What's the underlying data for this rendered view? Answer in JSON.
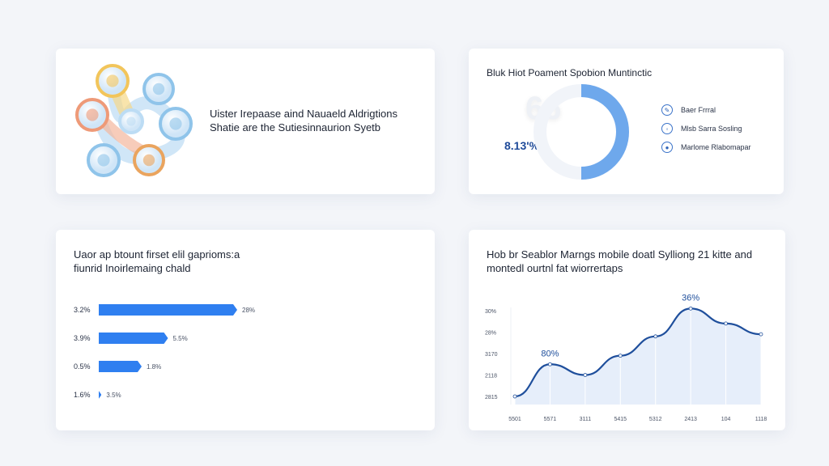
{
  "network_card": {
    "text_line1": "Uister Irepaase aind Nauaeld Aldrigtions",
    "text_line2": "Shatie are the Sutiesinnaurion Syetb",
    "node_colors": [
      "#f2c55b",
      "#8fc4ea",
      "#ee9a78",
      "#8fc4ea",
      "#8fc4ea",
      "#eaa45e",
      "#bcdcf4"
    ]
  },
  "donut_card": {
    "title": "Bluk Hiot Poament Spobion Muntinctic",
    "big_glyph": "66",
    "value_text": "8.13'%",
    "fill_fraction": 0.5,
    "accent": "#6ea8ec",
    "legend": [
      {
        "icon": "edit-icon",
        "glyph": "✎",
        "label": "Baer Frrral"
      },
      {
        "icon": "info-icon",
        "glyph": "◦",
        "label": "Mlsb Sarra Sosling"
      },
      {
        "icon": "chat-icon",
        "glyph": "●",
        "label": "Marlome Rlabomapar"
      }
    ]
  },
  "bar_card": {
    "title_line1": "Uaor ap btount firset elil gaprioms:a",
    "title_line2": "fiunrid Inoirlemaing chald",
    "color": "#2f7ff0",
    "bars": [
      {
        "left_label": "3.2%",
        "right_label": "28%",
        "fill": 1.0
      },
      {
        "left_label": "3.9%",
        "right_label": "5.5%",
        "fill": 0.5
      },
      {
        "left_label": "0.5%",
        "right_label": "1.8%",
        "fill": 0.31
      },
      {
        "left_label": "1.6%",
        "right_label": "3.5%",
        "fill": 0.02
      }
    ]
  },
  "chart_data": {
    "type": "area",
    "title": "Hob br Seablor Marngs mobile doatl Sylliong 21 kitte and montedl ourtnl fat wiorrertaps",
    "y_tick_labels": [
      "2815",
      "2118",
      "3170",
      "28%",
      "30%"
    ],
    "x_tick_labels": [
      "5501",
      "5571",
      "3111",
      "5415",
      "5312",
      "2413",
      "104",
      "1118"
    ],
    "series": [
      {
        "values": [
          0,
          1.5,
          1.0,
          1.9,
          2.8,
          4.1,
          3.4,
          2.9
        ]
      }
    ],
    "ylim": [
      0,
      4
    ],
    "annotations": [
      {
        "index": 1,
        "text": "80%"
      },
      {
        "index": 5,
        "text": "36%"
      }
    ],
    "line_color": "#1f4f9c",
    "fill_color": "#e6eefa",
    "grid": false
  }
}
